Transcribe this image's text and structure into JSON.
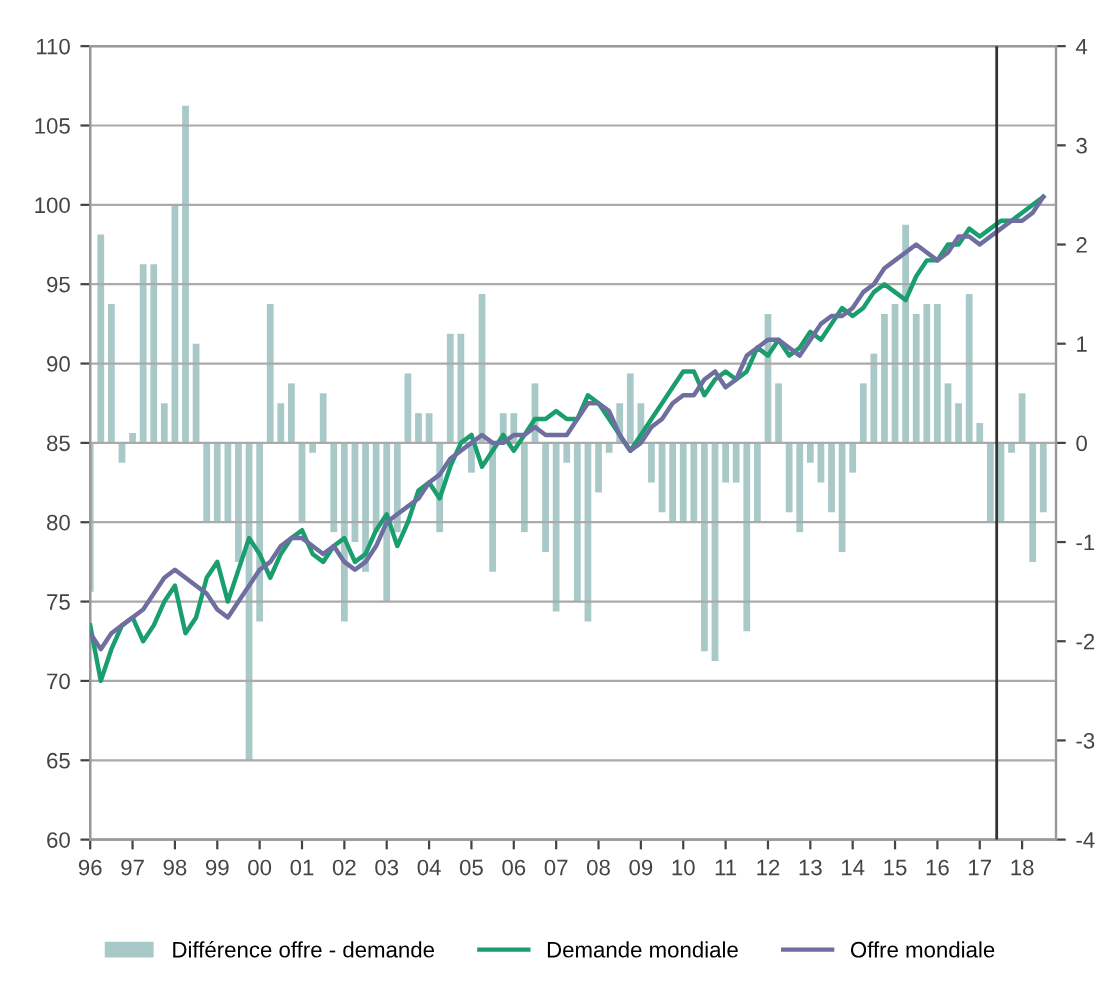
{
  "chart_data": {
    "type": "bar",
    "x": [
      1996.0,
      1996.25,
      1996.5,
      1996.75,
      1997.0,
      1997.25,
      1997.5,
      1997.75,
      1998.0,
      1998.25,
      1998.5,
      1998.75,
      1999.0,
      1999.25,
      1999.5,
      1999.75,
      2000.0,
      2000.25,
      2000.5,
      2000.75,
      2001.0,
      2001.25,
      2001.5,
      2001.75,
      2002.0,
      2002.25,
      2002.5,
      2002.75,
      2003.0,
      2003.25,
      2003.5,
      2003.75,
      2004.0,
      2004.25,
      2004.5,
      2004.75,
      2005.0,
      2005.25,
      2005.5,
      2005.75,
      2006.0,
      2006.25,
      2006.5,
      2006.75,
      2007.0,
      2007.25,
      2007.5,
      2007.75,
      2008.0,
      2008.25,
      2008.5,
      2008.75,
      2009.0,
      2009.25,
      2009.5,
      2009.75,
      2010.0,
      2010.25,
      2010.5,
      2010.75,
      2011.0,
      2011.25,
      2011.5,
      2011.75,
      2012.0,
      2012.25,
      2012.5,
      2012.75,
      2013.0,
      2013.25,
      2013.5,
      2013.75,
      2014.0,
      2014.25,
      2014.5,
      2014.75,
      2015.0,
      2015.25,
      2015.5,
      2015.75,
      2016.0,
      2016.25,
      2016.5,
      2016.75,
      2017.0,
      2017.25,
      2017.5,
      2017.75,
      2018.0,
      2018.25,
      2018.5
    ],
    "series": [
      {
        "name": "Différence offre - demande",
        "axis": "y2",
        "color": "#a9c9c9",
        "values": [
          -1.5,
          2.1,
          1.4,
          -0.2,
          0.1,
          1.8,
          1.8,
          0.4,
          2.4,
          3.4,
          1.0,
          -0.8,
          -0.8,
          -0.8,
          -1.2,
          -3.2,
          -1.8,
          1.4,
          0.4,
          0.6,
          -0.8,
          -0.1,
          0.5,
          -0.9,
          -1.8,
          -1.0,
          -1.3,
          -0.9,
          -1.6,
          -0.9,
          0.7,
          0.3,
          0.3,
          -0.9,
          1.1,
          1.1,
          -0.3,
          1.5,
          -1.3,
          0.3,
          0.3,
          -0.9,
          0.6,
          -1.1,
          -1.7,
          -0.2,
          -1.6,
          -1.8,
          -0.5,
          -0.1,
          0.4,
          0.7,
          0.4,
          -0.4,
          -0.7,
          -0.8,
          -0.8,
          -0.8,
          -2.1,
          -2.2,
          -0.4,
          -0.4,
          -1.9,
          -0.8,
          1.3,
          0.6,
          -0.7,
          -0.9,
          -0.2,
          -0.4,
          -0.7,
          -1.1,
          -0.3,
          0.6,
          0.9,
          1.3,
          1.4,
          2.2,
          1.3,
          1.4,
          1.4,
          0.6,
          0.4,
          1.5,
          0.2,
          -0.8,
          -0.8,
          -0.1,
          0.5,
          -1.2,
          -0.7
        ]
      },
      {
        "name": "Demande mondiale",
        "type": "line",
        "color": "#1a9e6e",
        "values": [
          73.5,
          70,
          72,
          73.5,
          74,
          72.5,
          73.5,
          75,
          76,
          73,
          74,
          76.5,
          77.5,
          75,
          77,
          79,
          78,
          76.5,
          78,
          79,
          79.5,
          78,
          77.5,
          78.5,
          79,
          77.5,
          78,
          79.5,
          80.5,
          78.5,
          80,
          82,
          82.5,
          81.5,
          83.5,
          85,
          85.5,
          83.5,
          84.5,
          85.5,
          84.5,
          85.5,
          86.5,
          86.5,
          87,
          86.5,
          86.5,
          88,
          87.5,
          86.5,
          85.5,
          84.5,
          85.5,
          86.5,
          87.5,
          88.5,
          89.5,
          89.5,
          88,
          89,
          89.5,
          89,
          89.5,
          91,
          90.5,
          91.5,
          90.5,
          91,
          92,
          91.5,
          92.5,
          93.5,
          93,
          93.5,
          94.5,
          95,
          94.5,
          94,
          95.5,
          96.5,
          96.5,
          97.5,
          97.5,
          98.5,
          98,
          98.5,
          99,
          99,
          99.5,
          100,
          100.5
        ]
      },
      {
        "name": "Offre mondiale",
        "type": "line",
        "color": "#6e6ea0",
        "values": [
          73,
          72,
          73,
          73.5,
          74,
          74.5,
          75.5,
          76.5,
          77,
          76.5,
          76,
          75.5,
          74.5,
          74,
          75,
          76,
          77,
          77.5,
          78.5,
          79,
          79,
          78.5,
          78,
          78.5,
          77.5,
          77,
          77.5,
          78.5,
          80,
          80.5,
          81,
          81.5,
          82.5,
          83,
          84,
          84.5,
          85,
          85.5,
          85,
          85,
          85.5,
          85.5,
          86,
          85.5,
          85.5,
          85.5,
          86.5,
          87.5,
          87.5,
          87,
          85.5,
          84.5,
          85,
          86,
          86.5,
          87.5,
          88,
          88,
          89,
          89.5,
          88.5,
          89,
          90.5,
          91,
          91.5,
          91.5,
          91,
          90.5,
          91.5,
          92.5,
          93,
          93,
          93.5,
          94.5,
          95,
          96,
          96.5,
          97,
          97.5,
          97,
          96.5,
          97,
          98,
          98,
          97.5,
          98,
          98.5,
          99,
          99,
          99.5,
          100.5
        ]
      }
    ],
    "xlim": [
      1996,
      2018.8
    ],
    "xticks": [
      {
        "value": 1996,
        "label": "96"
      },
      {
        "value": 1997,
        "label": "97"
      },
      {
        "value": 1998,
        "label": "98"
      },
      {
        "value": 1999,
        "label": "99"
      },
      {
        "value": 2000,
        "label": "00"
      },
      {
        "value": 2001,
        "label": "01"
      },
      {
        "value": 2002,
        "label": "02"
      },
      {
        "value": 2003,
        "label": "03"
      },
      {
        "value": 2004,
        "label": "04"
      },
      {
        "value": 2005,
        "label": "05"
      },
      {
        "value": 2006,
        "label": "06"
      },
      {
        "value": 2007,
        "label": "07"
      },
      {
        "value": 2008,
        "label": "08"
      },
      {
        "value": 2009,
        "label": "09"
      },
      {
        "value": 2010,
        "label": "10"
      },
      {
        "value": 2011,
        "label": "11"
      },
      {
        "value": 2012,
        "label": "12"
      },
      {
        "value": 2013,
        "label": "13"
      },
      {
        "value": 2014,
        "label": "14"
      },
      {
        "value": 2015,
        "label": "15"
      },
      {
        "value": 2016,
        "label": "16"
      },
      {
        "value": 2017,
        "label": "17"
      },
      {
        "value": 2018,
        "label": "18"
      }
    ],
    "ylim": [
      60,
      110
    ],
    "yticks": [
      60,
      65,
      70,
      75,
      80,
      85,
      90,
      95,
      100,
      105,
      110
    ],
    "y2lim": [
      -4,
      4
    ],
    "y2ticks": [
      -4,
      -3,
      -2,
      -1,
      0,
      1,
      2,
      3,
      4
    ],
    "ref_lines": [
      {
        "axis": "x",
        "value": 2017.4,
        "color": "#333333"
      }
    ],
    "grid": "y",
    "legend": "bottom"
  }
}
